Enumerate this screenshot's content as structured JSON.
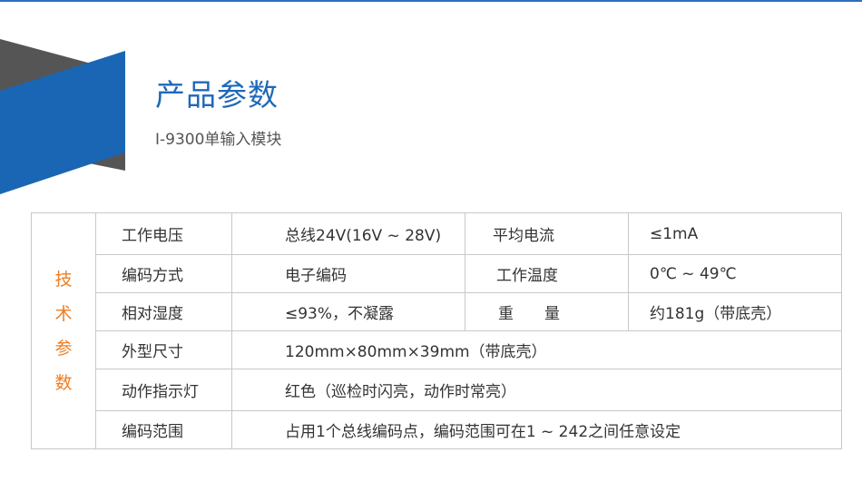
{
  "header": {
    "title": "产品参数",
    "subtitle": "I-9300单输入模块"
  },
  "colors": {
    "accent_blue": "#1f68b8",
    "gray": "#555555",
    "orange": "#ef7d22"
  },
  "table": {
    "side_label": [
      "技",
      "术",
      "参",
      "数"
    ],
    "rows": [
      {
        "k": "工作电压",
        "v": "总线24V(16V ~ 28V)",
        "k2": "平均电流",
        "v2": "≤1mA"
      },
      {
        "k": "编码方式",
        "v": "电子编码",
        "k2": "工作温度",
        "v2": "0℃ ~ 49℃"
      },
      {
        "k": "相对湿度",
        "v": "≤93%，不凝露",
        "k2": "重　　量",
        "v2": "约181g（带底壳）"
      },
      {
        "k": "外型尺寸",
        "v": "120mm×80mm×39mm（带底壳）"
      },
      {
        "k": "动作指示灯",
        "v": "红色（巡检时闪亮，动作时常亮）"
      },
      {
        "k": "编码范围",
        "v": "占用1个总线编码点，编码范围可在1 ~ 242之间任意设定"
      }
    ]
  }
}
